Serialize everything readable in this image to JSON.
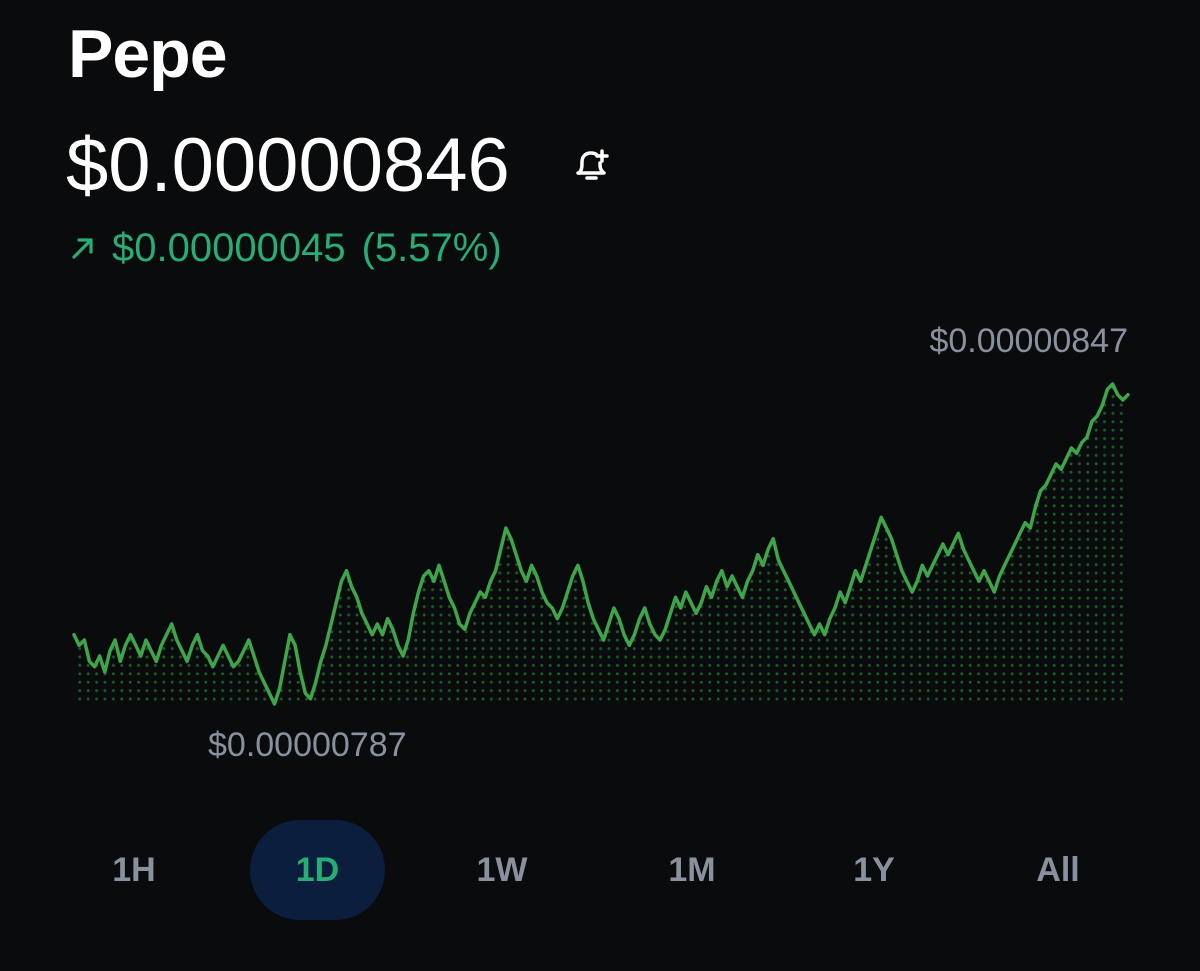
{
  "asset": {
    "name": "Pepe",
    "price": "$0.00000846",
    "change_amount": "$0.00000045",
    "change_percent": "(5.57%)"
  },
  "icons": {
    "alert": "bell-plus-icon",
    "change_direction": "arrow-up-right-icon"
  },
  "colors": {
    "background": "#0a0b0d",
    "positive": "#27ad75",
    "line": "#3fa54a",
    "muted_text": "#8a919e",
    "active_tab_bg": "#0c1e3e"
  },
  "chart_data": {
    "type": "area",
    "high_label": "$0.00000847",
    "low_label": "$0.00000787",
    "ylim": [
      7.87,
      8.47
    ],
    "y": [
      8.0,
      7.98,
      7.99,
      7.95,
      7.94,
      7.96,
      7.93,
      7.97,
      7.99,
      7.95,
      7.98,
      8.0,
      7.98,
      7.96,
      7.99,
      7.97,
      7.95,
      7.98,
      8.0,
      8.02,
      7.99,
      7.97,
      7.95,
      7.98,
      8.0,
      7.97,
      7.96,
      7.94,
      7.96,
      7.98,
      7.96,
      7.94,
      7.95,
      7.97,
      7.99,
      7.96,
      7.93,
      7.91,
      7.89,
      7.87,
      7.9,
      7.95,
      8.0,
      7.98,
      7.93,
      7.89,
      7.88,
      7.91,
      7.95,
      7.98,
      8.02,
      8.06,
      8.1,
      8.12,
      8.09,
      8.07,
      8.04,
      8.02,
      8.0,
      8.02,
      8.0,
      8.03,
      8.01,
      7.98,
      7.96,
      7.99,
      8.04,
      8.08,
      8.11,
      8.12,
      8.1,
      8.13,
      8.1,
      8.07,
      8.05,
      8.02,
      8.01,
      8.04,
      8.06,
      8.08,
      8.07,
      8.1,
      8.12,
      8.16,
      8.2,
      8.18,
      8.15,
      8.12,
      8.1,
      8.13,
      8.11,
      8.08,
      8.06,
      8.05,
      8.03,
      8.05,
      8.08,
      8.11,
      8.13,
      8.1,
      8.06,
      8.03,
      8.01,
      7.99,
      8.02,
      8.05,
      8.03,
      8.0,
      7.98,
      8.0,
      8.03,
      8.05,
      8.02,
      8.0,
      7.99,
      8.01,
      8.04,
      8.07,
      8.05,
      8.08,
      8.06,
      8.04,
      8.06,
      8.09,
      8.07,
      8.1,
      8.12,
      8.09,
      8.11,
      8.09,
      8.07,
      8.1,
      8.12,
      8.15,
      8.13,
      8.16,
      8.18,
      8.14,
      8.12,
      8.1,
      8.08,
      8.06,
      8.04,
      8.02,
      8.0,
      8.02,
      8.0,
      8.03,
      8.05,
      8.08,
      8.06,
      8.09,
      8.12,
      8.1,
      8.13,
      8.16,
      8.19,
      8.22,
      8.2,
      8.18,
      8.15,
      8.12,
      8.1,
      8.08,
      8.1,
      8.13,
      8.11,
      8.13,
      8.15,
      8.17,
      8.15,
      8.17,
      8.19,
      8.16,
      8.14,
      8.12,
      8.1,
      8.12,
      8.1,
      8.08,
      8.11,
      8.13,
      8.15,
      8.17,
      8.19,
      8.21,
      8.2,
      8.24,
      8.27,
      8.28,
      8.3,
      8.32,
      8.31,
      8.33,
      8.35,
      8.34,
      8.36,
      8.37,
      8.4,
      8.41,
      8.43,
      8.46,
      8.47,
      8.45,
      8.44,
      8.45
    ]
  },
  "time_ranges": [
    {
      "label": "1H",
      "active": false
    },
    {
      "label": "1D",
      "active": true
    },
    {
      "label": "1W",
      "active": false
    },
    {
      "label": "1M",
      "active": false
    },
    {
      "label": "1Y",
      "active": false
    },
    {
      "label": "All",
      "active": false
    }
  ]
}
